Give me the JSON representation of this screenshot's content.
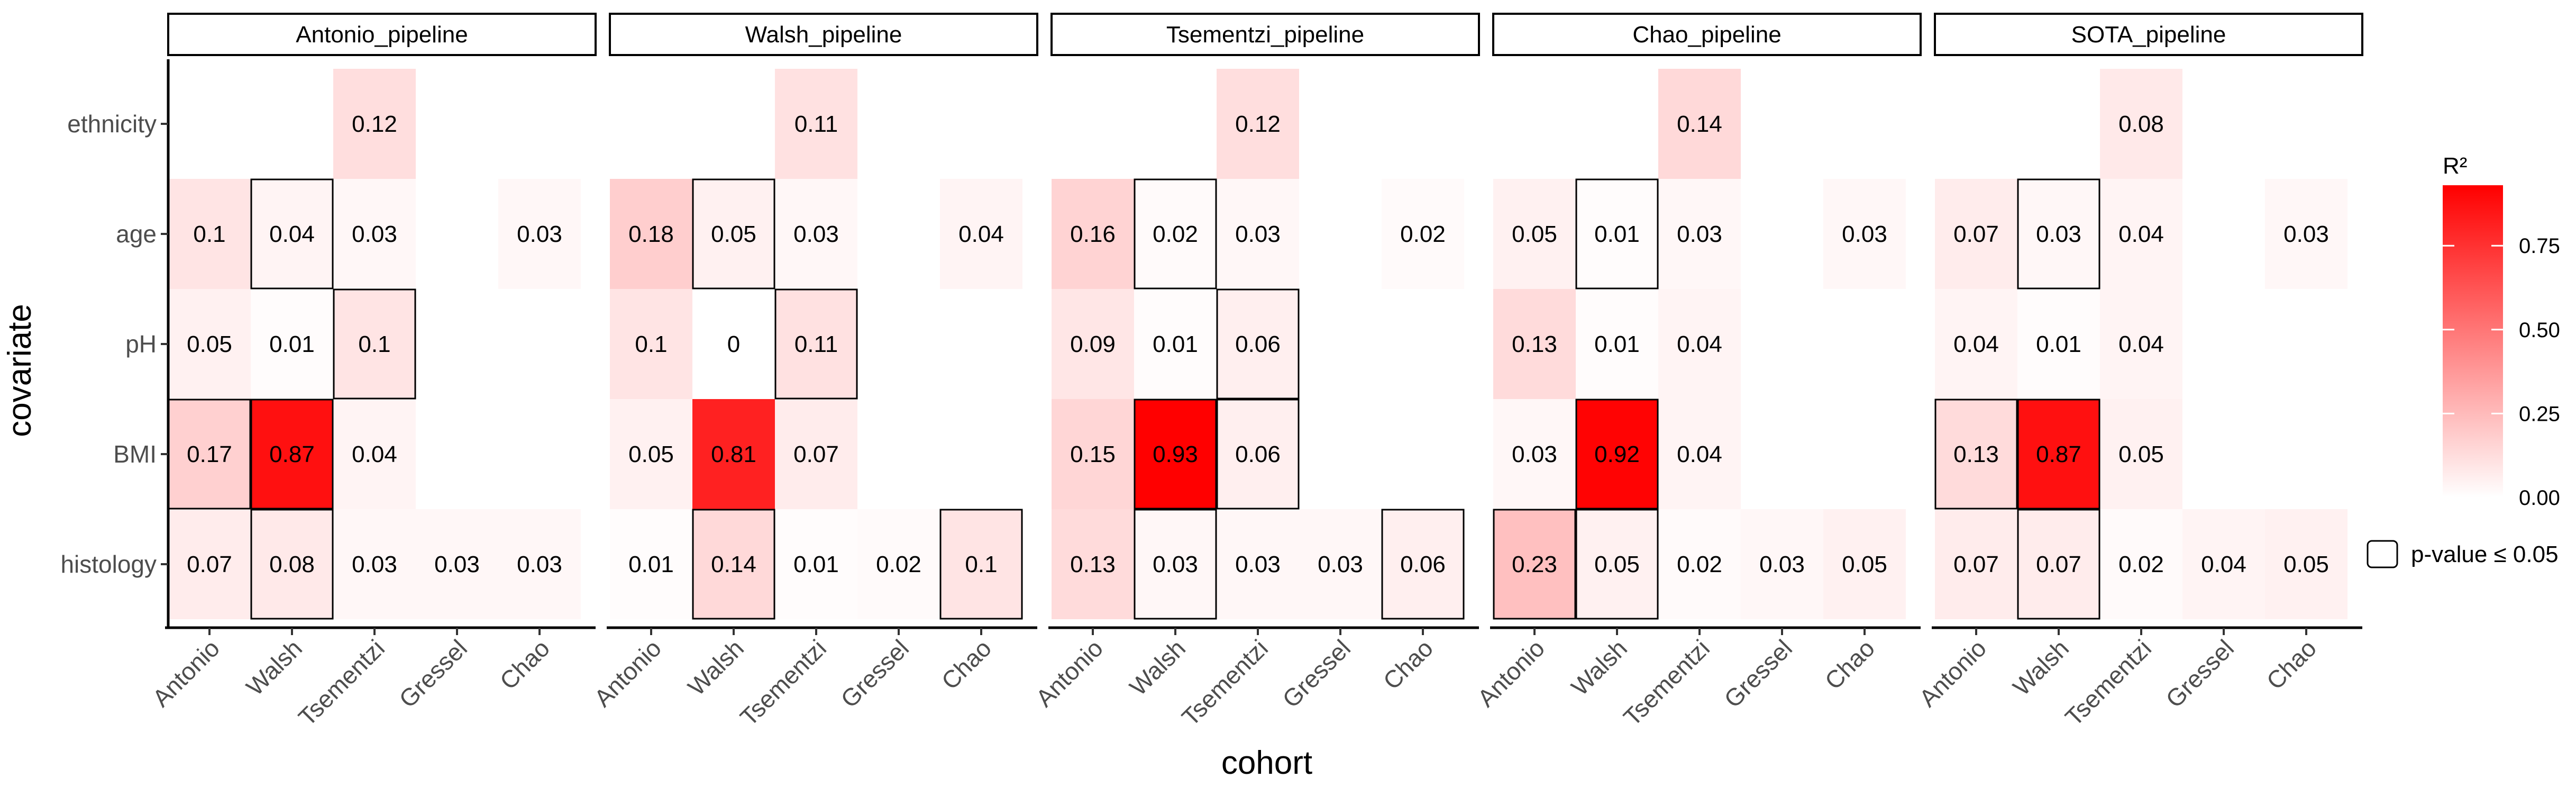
{
  "chart_data": {
    "type": "heatmap",
    "xlabel": "cohort",
    "ylabel": "covariate",
    "categories_x": [
      "Antonio",
      "Walsh",
      "Tsementzi",
      "Gressel",
      "Chao"
    ],
    "categories_y": [
      "ethnicity",
      "age",
      "pH",
      "BMI",
      "histology"
    ],
    "facets": [
      {
        "name": "Antonio_pipeline",
        "cells": [
          {
            "y": "ethnicity",
            "x": "Tsementzi",
            "value": 0.12,
            "sig": false
          },
          {
            "y": "age",
            "x": "Antonio",
            "value": 0.1,
            "sig": false
          },
          {
            "y": "age",
            "x": "Walsh",
            "value": 0.04,
            "sig": true
          },
          {
            "y": "age",
            "x": "Tsementzi",
            "value": 0.03,
            "sig": false
          },
          {
            "y": "age",
            "x": "Chao",
            "value": 0.03,
            "sig": false
          },
          {
            "y": "pH",
            "x": "Antonio",
            "value": 0.05,
            "sig": false
          },
          {
            "y": "pH",
            "x": "Walsh",
            "value": 0.01,
            "sig": false
          },
          {
            "y": "pH",
            "x": "Tsementzi",
            "value": 0.1,
            "sig": true
          },
          {
            "y": "BMI",
            "x": "Antonio",
            "value": 0.17,
            "sig": true
          },
          {
            "y": "BMI",
            "x": "Walsh",
            "value": 0.87,
            "sig": true
          },
          {
            "y": "BMI",
            "x": "Tsementzi",
            "value": 0.04,
            "sig": false
          },
          {
            "y": "histology",
            "x": "Antonio",
            "value": 0.07,
            "sig": false
          },
          {
            "y": "histology",
            "x": "Walsh",
            "value": 0.08,
            "sig": true
          },
          {
            "y": "histology",
            "x": "Tsementzi",
            "value": 0.03,
            "sig": false
          },
          {
            "y": "histology",
            "x": "Gressel",
            "value": 0.03,
            "sig": false
          },
          {
            "y": "histology",
            "x": "Chao",
            "value": 0.03,
            "sig": false
          }
        ]
      },
      {
        "name": "Walsh_pipeline",
        "cells": [
          {
            "y": "ethnicity",
            "x": "Tsementzi",
            "value": 0.11,
            "sig": false
          },
          {
            "y": "age",
            "x": "Antonio",
            "value": 0.18,
            "sig": false
          },
          {
            "y": "age",
            "x": "Walsh",
            "value": 0.05,
            "sig": true
          },
          {
            "y": "age",
            "x": "Tsementzi",
            "value": 0.03,
            "sig": false
          },
          {
            "y": "age",
            "x": "Chao",
            "value": 0.04,
            "sig": false
          },
          {
            "y": "pH",
            "x": "Antonio",
            "value": 0.1,
            "sig": false
          },
          {
            "y": "pH",
            "x": "Walsh",
            "value": 0,
            "sig": false
          },
          {
            "y": "pH",
            "x": "Tsementzi",
            "value": 0.11,
            "sig": true
          },
          {
            "y": "BMI",
            "x": "Antonio",
            "value": 0.05,
            "sig": false
          },
          {
            "y": "BMI",
            "x": "Walsh",
            "value": 0.81,
            "sig": false
          },
          {
            "y": "BMI",
            "x": "Tsementzi",
            "value": 0.07,
            "sig": false
          },
          {
            "y": "histology",
            "x": "Antonio",
            "value": 0.01,
            "sig": false
          },
          {
            "y": "histology",
            "x": "Walsh",
            "value": 0.14,
            "sig": true
          },
          {
            "y": "histology",
            "x": "Tsementzi",
            "value": 0.01,
            "sig": false
          },
          {
            "y": "histology",
            "x": "Gressel",
            "value": 0.02,
            "sig": false
          },
          {
            "y": "histology",
            "x": "Chao",
            "value": 0.1,
            "sig": true
          }
        ]
      },
      {
        "name": "Tsementzi_pipeline",
        "cells": [
          {
            "y": "ethnicity",
            "x": "Tsementzi",
            "value": 0.12,
            "sig": false
          },
          {
            "y": "age",
            "x": "Antonio",
            "value": 0.16,
            "sig": false
          },
          {
            "y": "age",
            "x": "Walsh",
            "value": 0.02,
            "sig": true
          },
          {
            "y": "age",
            "x": "Tsementzi",
            "value": 0.03,
            "sig": false
          },
          {
            "y": "age",
            "x": "Chao",
            "value": 0.02,
            "sig": false
          },
          {
            "y": "pH",
            "x": "Antonio",
            "value": 0.09,
            "sig": false
          },
          {
            "y": "pH",
            "x": "Walsh",
            "value": 0.01,
            "sig": false
          },
          {
            "y": "pH",
            "x": "Tsementzi",
            "value": 0.06,
            "sig": true
          },
          {
            "y": "BMI",
            "x": "Antonio",
            "value": 0.15,
            "sig": false
          },
          {
            "y": "BMI",
            "x": "Walsh",
            "value": 0.93,
            "sig": true
          },
          {
            "y": "BMI",
            "x": "Tsementzi",
            "value": 0.06,
            "sig": true
          },
          {
            "y": "histology",
            "x": "Antonio",
            "value": 0.13,
            "sig": false
          },
          {
            "y": "histology",
            "x": "Walsh",
            "value": 0.03,
            "sig": true
          },
          {
            "y": "histology",
            "x": "Tsementzi",
            "value": 0.03,
            "sig": false
          },
          {
            "y": "histology",
            "x": "Gressel",
            "value": 0.03,
            "sig": false
          },
          {
            "y": "histology",
            "x": "Chao",
            "value": 0.06,
            "sig": true
          }
        ]
      },
      {
        "name": "Chao_pipeline",
        "cells": [
          {
            "y": "ethnicity",
            "x": "Tsementzi",
            "value": 0.14,
            "sig": false
          },
          {
            "y": "age",
            "x": "Antonio",
            "value": 0.05,
            "sig": false
          },
          {
            "y": "age",
            "x": "Walsh",
            "value": 0.01,
            "sig": true
          },
          {
            "y": "age",
            "x": "Tsementzi",
            "value": 0.03,
            "sig": false
          },
          {
            "y": "age",
            "x": "Chao",
            "value": 0.03,
            "sig": false
          },
          {
            "y": "pH",
            "x": "Antonio",
            "value": 0.13,
            "sig": false
          },
          {
            "y": "pH",
            "x": "Walsh",
            "value": 0.01,
            "sig": false
          },
          {
            "y": "pH",
            "x": "Tsementzi",
            "value": 0.04,
            "sig": false
          },
          {
            "y": "BMI",
            "x": "Antonio",
            "value": 0.03,
            "sig": false
          },
          {
            "y": "BMI",
            "x": "Walsh",
            "value": 0.92,
            "sig": true
          },
          {
            "y": "BMI",
            "x": "Tsementzi",
            "value": 0.04,
            "sig": false
          },
          {
            "y": "histology",
            "x": "Antonio",
            "value": 0.23,
            "sig": true
          },
          {
            "y": "histology",
            "x": "Walsh",
            "value": 0.05,
            "sig": true
          },
          {
            "y": "histology",
            "x": "Tsementzi",
            "value": 0.02,
            "sig": false
          },
          {
            "y": "histology",
            "x": "Gressel",
            "value": 0.03,
            "sig": false
          },
          {
            "y": "histology",
            "x": "Chao",
            "value": 0.05,
            "sig": false
          }
        ]
      },
      {
        "name": "SOTA_pipeline",
        "cells": [
          {
            "y": "ethnicity",
            "x": "Tsementzi",
            "value": 0.08,
            "sig": false
          },
          {
            "y": "age",
            "x": "Antonio",
            "value": 0.07,
            "sig": false
          },
          {
            "y": "age",
            "x": "Walsh",
            "value": 0.03,
            "sig": true
          },
          {
            "y": "age",
            "x": "Tsementzi",
            "value": 0.04,
            "sig": false
          },
          {
            "y": "age",
            "x": "Chao",
            "value": 0.03,
            "sig": false
          },
          {
            "y": "pH",
            "x": "Antonio",
            "value": 0.04,
            "sig": false
          },
          {
            "y": "pH",
            "x": "Walsh",
            "value": 0.01,
            "sig": false
          },
          {
            "y": "pH",
            "x": "Tsementzi",
            "value": 0.04,
            "sig": false
          },
          {
            "y": "BMI",
            "x": "Antonio",
            "value": 0.13,
            "sig": true
          },
          {
            "y": "BMI",
            "x": "Walsh",
            "value": 0.87,
            "sig": true
          },
          {
            "y": "BMI",
            "x": "Tsementzi",
            "value": 0.05,
            "sig": false
          },
          {
            "y": "histology",
            "x": "Antonio",
            "value": 0.07,
            "sig": false
          },
          {
            "y": "histology",
            "x": "Walsh",
            "value": 0.07,
            "sig": true
          },
          {
            "y": "histology",
            "x": "Tsementzi",
            "value": 0.02,
            "sig": false
          },
          {
            "y": "histology",
            "x": "Gressel",
            "value": 0.04,
            "sig": false
          },
          {
            "y": "histology",
            "x": "Chao",
            "value": 0.05,
            "sig": false
          }
        ]
      }
    ],
    "colorbar": {
      "title": "R²",
      "range": [
        0,
        0.93
      ],
      "ticks": [
        "0.00",
        "0.25",
        "0.50",
        "0.75"
      ],
      "tick_values": [
        0,
        0.25,
        0.5,
        0.75
      ],
      "low_color": "#ffffff",
      "high_color": "#ff0000"
    },
    "legend": {
      "label": "p-value ≤ 0.05"
    },
    "grid": false
  }
}
